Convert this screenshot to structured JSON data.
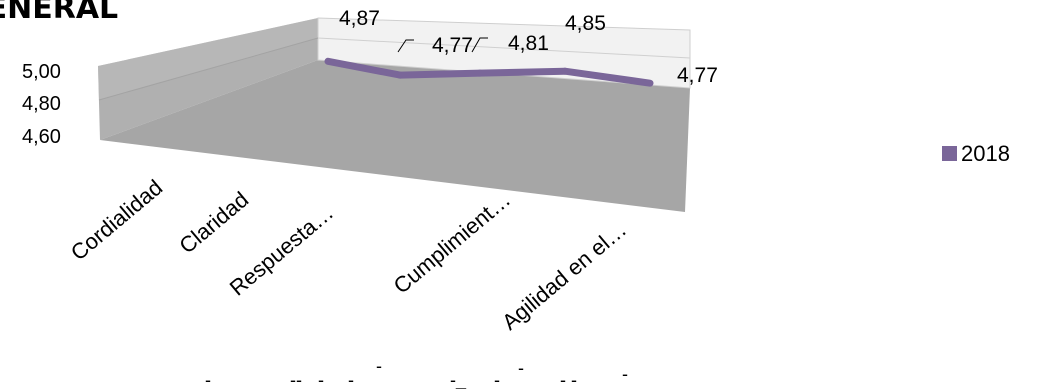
{
  "chart_data": {
    "type": "line",
    "title": "GENERAL",
    "categories": [
      "Cordialidad",
      "Claridad",
      "Respuesta…",
      "Cumplimient…",
      "Agilidad en el…"
    ],
    "series": [
      {
        "name": "2018",
        "values": [
          4.87,
          4.77,
          4.81,
          4.85,
          4.77
        ],
        "data_labels": [
          "4,87",
          "4,77",
          "4,81",
          "4,85",
          "4,77"
        ],
        "color": "#7a6699"
      }
    ],
    "yticks": [
      "5,00",
      "4,80",
      "4,60"
    ],
    "ylim": [
      4.6,
      5.0
    ],
    "view": "3d",
    "legend_position": "right",
    "wall_color": "#b0b0b0",
    "floor_color": "#a6a6a6",
    "back_wall_color": "#f2f2f2"
  },
  "footer_marks": [
    "-",
    "--",
    "-",
    "-",
    "-",
    "-_",
    "-",
    "-",
    "- -",
    "-"
  ]
}
